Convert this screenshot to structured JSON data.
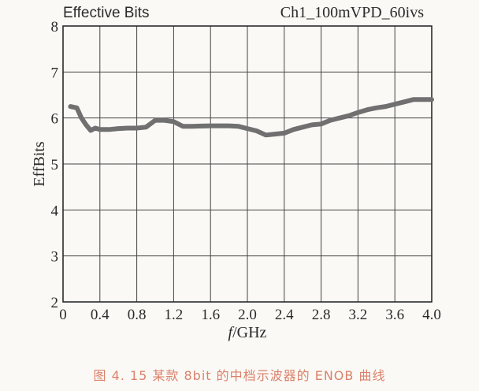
{
  "chart_data": {
    "type": "line",
    "title_left": "Effective Bits",
    "title_right": "Ch1_100mVPD_60ivs",
    "xlabel_prefix": "f",
    "xlabel_suffix": "/GHz",
    "ylabel": "EffBits",
    "xlim": [
      0,
      4.0
    ],
    "ylim": [
      2,
      8
    ],
    "xticks": [
      "0",
      "0.4",
      "0.8",
      "1.2",
      "1.6",
      "2.0",
      "2.4",
      "2.8",
      "3.2",
      "3.6",
      "4.0"
    ],
    "yticks": [
      "2",
      "3",
      "4",
      "5",
      "6",
      "7",
      "8"
    ],
    "grid": true,
    "line_color": "#707070",
    "series": [
      {
        "x": [
          0.08,
          0.15,
          0.2,
          0.25,
          0.3,
          0.35,
          0.4,
          0.5,
          0.6,
          0.7,
          0.8,
          0.9,
          1.0,
          1.1,
          1.2,
          1.3,
          1.4,
          1.6,
          1.8,
          1.9,
          2.0,
          2.1,
          2.2,
          2.3,
          2.4,
          2.5,
          2.6,
          2.7,
          2.8,
          2.9,
          3.0,
          3.1,
          3.2,
          3.3,
          3.4,
          3.5,
          3.6,
          3.7,
          3.8,
          3.9,
          4.0
        ],
        "y": [
          6.25,
          6.22,
          6.0,
          5.85,
          5.73,
          5.78,
          5.75,
          5.75,
          5.77,
          5.78,
          5.78,
          5.8,
          5.95,
          5.95,
          5.92,
          5.82,
          5.82,
          5.83,
          5.83,
          5.82,
          5.77,
          5.72,
          5.63,
          5.65,
          5.67,
          5.75,
          5.8,
          5.85,
          5.87,
          5.95,
          6.0,
          6.05,
          6.12,
          6.18,
          6.22,
          6.25,
          6.3,
          6.35,
          6.4,
          6.4,
          6.4
        ]
      }
    ]
  },
  "caption": "图 4. 15 某款 8bit 的中档示波器的 ENOB 曲线"
}
